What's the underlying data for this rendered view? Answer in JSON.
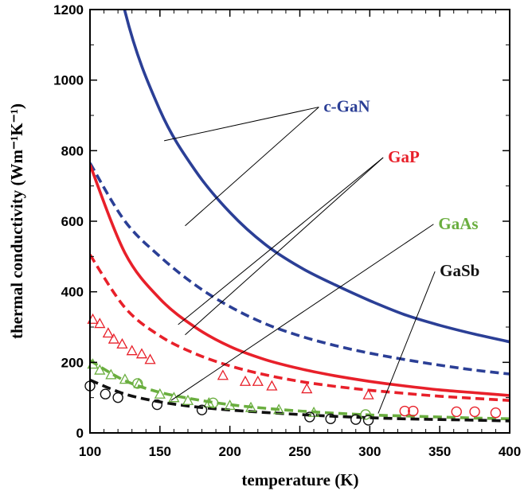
{
  "chart_data": {
    "type": "line",
    "title": "",
    "xlabel": "temperature (K)",
    "ylabel": "thermal conductivity (Wm⁻¹K⁻¹)",
    "xlim": [
      100,
      400
    ],
    "ylim": [
      0,
      1200
    ],
    "xticks": [
      100,
      150,
      200,
      250,
      300,
      350,
      400
    ],
    "yticks": [
      0,
      200,
      400,
      600,
      800,
      1000,
      1200
    ],
    "grid": false,
    "legend": "inline labels with leader lines",
    "series": [
      {
        "name": "c-GaN",
        "color": "#2b3f96",
        "solid": {
          "x": [
            100,
            125,
            150,
            175,
            200,
            225,
            250,
            275,
            300,
            325,
            350,
            375,
            400
          ],
          "y": [
            1700,
            1195,
            915,
            745,
            625,
            535,
            470,
            420,
            375,
            335,
            305,
            280,
            258
          ]
        },
        "dashed": {
          "x": [
            100,
            125,
            150,
            175,
            200,
            225,
            250,
            275,
            300,
            325,
            350,
            375,
            400
          ],
          "y": [
            765,
            600,
            500,
            420,
            358,
            310,
            275,
            248,
            226,
            208,
            192,
            178,
            167
          ]
        },
        "measured": {
          "marker": "none",
          "x": [],
          "y": []
        }
      },
      {
        "name": "GaP",
        "color": "#e8202a",
        "solid": {
          "x": [
            100,
            125,
            150,
            175,
            200,
            225,
            250,
            275,
            300,
            325,
            350,
            375,
            400
          ],
          "y": [
            760,
            510,
            380,
            300,
            245,
            208,
            182,
            162,
            146,
            133,
            122,
            114,
            106
          ]
        },
        "dashed": {
          "x": [
            100,
            125,
            150,
            175,
            200,
            225,
            250,
            275,
            300,
            325,
            350,
            375,
            400
          ],
          "y": [
            505,
            355,
            275,
            225,
            190,
            165,
            146,
            132,
            121,
            112,
            104,
            98,
            92
          ]
        },
        "measured": {
          "marker": "triangle",
          "x": [
            102,
            107,
            113,
            117,
            123,
            130,
            137,
            143,
            195,
            211,
            220,
            230,
            255,
            299
          ],
          "y": [
            322,
            310,
            283,
            266,
            252,
            233,
            224,
            208,
            163,
            146,
            146,
            133,
            125,
            108
          ]
        },
        "measured_extra": {
          "marker": "circle",
          "x": [
            325,
            331,
            362,
            375,
            390
          ],
          "y": [
            62,
            62,
            60,
            60,
            57
          ]
        }
      },
      {
        "name": "GaAs",
        "color": "#6aae3f",
        "solid": {
          "x": [],
          "y": []
        },
        "dashed": {
          "x": [
            100,
            125,
            150,
            175,
            200,
            225,
            250,
            275,
            300,
            325,
            350,
            375,
            400
          ],
          "y": [
            205,
            148,
            115,
            95,
            80,
            70,
            62,
            56,
            51,
            48,
            45,
            42,
            40
          ]
        },
        "measured": {
          "marker": "triangle",
          "x": [
            102,
            107,
            115,
            125,
            135,
            150,
            160,
            170,
            185,
            200,
            215,
            235,
            260
          ],
          "y": [
            195,
            178,
            165,
            152,
            140,
            110,
            100,
            92,
            85,
            78,
            72,
            66,
            58
          ]
        },
        "measured_extra": {
          "marker": "circle",
          "x": [
            134,
            188,
            297
          ],
          "y": [
            140,
            85,
            52
          ]
        }
      },
      {
        "name": "GaSb",
        "color": "#111111",
        "solid": {
          "x": [],
          "y": []
        },
        "dashed": {
          "x": [
            100,
            125,
            150,
            175,
            200,
            225,
            250,
            275,
            300,
            325,
            350,
            375,
            400
          ],
          "y": [
            150,
            110,
            88,
            74,
            65,
            58,
            52,
            47,
            43,
            40,
            38,
            36,
            34
          ]
        },
        "measured": {
          "marker": "circle",
          "x": [
            100,
            111,
            120,
            148,
            180,
            257,
            272,
            290,
            299
          ],
          "y": [
            133,
            110,
            100,
            80,
            65,
            45,
            40,
            38,
            36
          ]
        }
      }
    ],
    "labels": [
      {
        "text": "c-GaN",
        "x": 267,
        "y": 910,
        "leader_to": [
          [
            168,
            587
          ],
          [
            153,
            828
          ]
        ]
      },
      {
        "text": "GaP",
        "x": 313,
        "y": 767,
        "leader_to": [
          [
            163,
            307
          ],
          [
            168,
            278
          ]
        ]
      },
      {
        "text": "GaAs",
        "x": 349,
        "y": 578,
        "leader_to": [
          [
            158,
            92
          ]
        ]
      },
      {
        "text": "GaSb",
        "x": 350,
        "y": 444,
        "leader_to": [
          [
            306,
            55
          ]
        ]
      }
    ]
  }
}
